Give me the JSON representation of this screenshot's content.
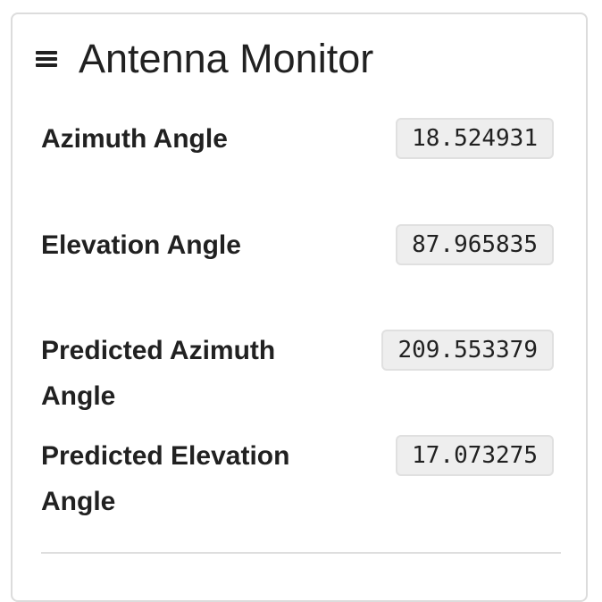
{
  "header": {
    "menu_icon": "hamburger-menu-icon",
    "title": "Antenna Monitor"
  },
  "readings": [
    {
      "label": "Azimuth Angle",
      "value": "18.524931"
    },
    {
      "label": "Elevation Angle",
      "value": "87.965835"
    },
    {
      "label": "Predicted Azimuth Angle",
      "value": "209.553379"
    },
    {
      "label": "Predicted Elevation Angle",
      "value": "17.073275"
    }
  ]
}
